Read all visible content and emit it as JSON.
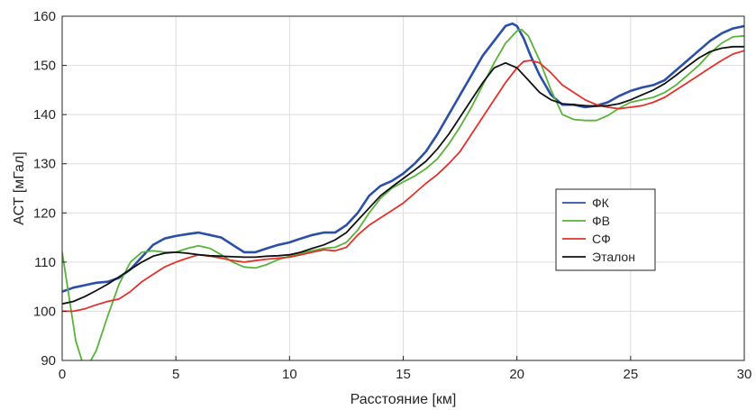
{
  "chart_data": {
    "type": "line",
    "xlabel": "Расстояние [км]",
    "ylabel": "АСТ  [мГал]",
    "xlim": [
      0,
      30
    ],
    "ylim": [
      90,
      160
    ],
    "x_ticks": [
      0,
      5,
      10,
      15,
      20,
      25,
      30
    ],
    "y_ticks": [
      90,
      100,
      110,
      120,
      130,
      140,
      150,
      160
    ],
    "grid": true,
    "legend_position": "right",
    "series": [
      {
        "name": "ФК",
        "color": "#2b4fa6",
        "width": 2.6,
        "x": [
          0,
          0.5,
          1,
          1.5,
          2,
          2.5,
          3,
          3.5,
          4,
          4.5,
          5,
          5.5,
          6,
          6.5,
          7,
          7.5,
          8,
          8.5,
          9,
          9.5,
          10,
          10.5,
          11,
          11.5,
          12,
          12.5,
          13,
          13.5,
          14,
          14.5,
          15,
          15.5,
          16,
          16.5,
          17,
          17.5,
          18,
          18.5,
          19,
          19.5,
          19.8,
          20,
          20.3,
          20.6,
          21,
          21.5,
          22,
          22.5,
          23,
          23.5,
          24,
          24.5,
          25,
          25.5,
          26,
          26.5,
          27,
          27.5,
          28,
          28.5,
          29,
          29.5,
          30
        ],
        "y": [
          104,
          104.8,
          105.3,
          105.8,
          106,
          106.8,
          108.5,
          111,
          113.5,
          114.8,
          115.3,
          115.7,
          116,
          115.5,
          115,
          113.5,
          112,
          112,
          112.8,
          113.5,
          114,
          114.8,
          115.5,
          116,
          116,
          117.5,
          120,
          123.5,
          125.5,
          126.5,
          128,
          130,
          132.5,
          136,
          140,
          144,
          148,
          152,
          155,
          158,
          158.5,
          158,
          155.5,
          152,
          148,
          144,
          142,
          142,
          141.5,
          141.8,
          142.5,
          143.8,
          144.8,
          145.5,
          146,
          147,
          149,
          151,
          153,
          155,
          156.5,
          157.5,
          158
        ]
      },
      {
        "name": "ФВ",
        "color": "#59b33a",
        "width": 1.8,
        "x": [
          0,
          0.3,
          0.6,
          0.9,
          1.2,
          1.5,
          2,
          2.5,
          3,
          3.5,
          4,
          4.5,
          5,
          5.5,
          6,
          6.5,
          7,
          7.5,
          8,
          8.5,
          9,
          9.5,
          10,
          10.5,
          11,
          11.5,
          12,
          12.5,
          13,
          13.5,
          14,
          14.5,
          15,
          15.5,
          16,
          16.5,
          17,
          17.5,
          18,
          18.5,
          19,
          19.5,
          20,
          20.2,
          20.5,
          21,
          21.5,
          22,
          22.5,
          23,
          23.5,
          24,
          24.5,
          25,
          25.5,
          26,
          26.5,
          27,
          27.5,
          28,
          28.5,
          29,
          29.5,
          30
        ],
        "y": [
          112,
          103,
          94,
          89.5,
          89.5,
          92,
          99,
          105.5,
          110,
          112,
          112.3,
          112,
          112,
          112.8,
          113.3,
          112.8,
          111.5,
          110,
          109,
          108.8,
          109.5,
          110.5,
          111.2,
          111.8,
          112.3,
          112.8,
          113,
          114,
          116.5,
          120,
          123,
          125,
          126.3,
          127.5,
          129,
          131,
          134,
          137.5,
          141.5,
          146,
          150.5,
          154.5,
          157,
          157.3,
          156,
          151,
          145,
          140,
          139,
          138.8,
          138.8,
          139.8,
          141.3,
          142.5,
          143,
          143.5,
          144.5,
          146,
          148,
          150,
          152.5,
          154.5,
          155.8,
          156
        ]
      },
      {
        "name": "СФ",
        "color": "#e2312a",
        "width": 1.8,
        "x": [
          0,
          0.5,
          1,
          1.5,
          2,
          2.5,
          3,
          3.5,
          4,
          4.5,
          5,
          5.5,
          6,
          6.5,
          7,
          7.5,
          8,
          8.5,
          9,
          9.5,
          10,
          10.5,
          11,
          11.5,
          12,
          12.5,
          13,
          13.5,
          14,
          14.5,
          15,
          15.5,
          16,
          16.5,
          17,
          17.5,
          18,
          18.5,
          19,
          19.5,
          20,
          20.3,
          20.6,
          21,
          21.5,
          22,
          22.5,
          23,
          23.5,
          24,
          24.5,
          25,
          25.5,
          26,
          26.5,
          27,
          27.5,
          28,
          28.5,
          29,
          29.5,
          30
        ],
        "y": [
          100,
          100,
          100.5,
          101.3,
          102,
          102.5,
          104,
          106,
          107.5,
          109,
          110,
          110.8,
          111.5,
          111.2,
          110.8,
          110.3,
          110,
          110.3,
          110.6,
          110.8,
          111,
          111.5,
          112,
          112.5,
          112.3,
          113,
          115.5,
          117.5,
          119,
          120.5,
          122,
          124,
          126,
          127.8,
          130,
          132.5,
          136,
          139.5,
          143,
          146.5,
          149.5,
          150.8,
          151,
          150.5,
          148.5,
          146,
          144.5,
          143,
          142,
          141.5,
          141.2,
          141.5,
          141.8,
          142.5,
          143.5,
          145,
          146.5,
          148,
          149.5,
          151,
          152.3,
          153
        ]
      },
      {
        "name": "Эталон",
        "color": "#111111",
        "width": 1.8,
        "x": [
          0,
          0.5,
          1,
          1.5,
          2,
          2.5,
          3,
          3.5,
          4,
          4.5,
          5,
          5.5,
          6,
          6.5,
          7,
          7.5,
          8,
          8.5,
          9,
          9.5,
          10,
          10.5,
          11,
          11.5,
          12,
          12.5,
          13,
          13.5,
          14,
          14.5,
          15,
          15.5,
          16,
          16.5,
          17,
          17.5,
          18,
          18.5,
          19,
          19.5,
          20,
          20.5,
          21,
          21.5,
          22,
          22.5,
          23,
          23.5,
          24,
          24.5,
          25,
          25.5,
          26,
          26.5,
          27,
          27.5,
          28,
          28.5,
          29,
          29.5,
          30
        ],
        "y": [
          101.5,
          102,
          103,
          104.2,
          105.5,
          107,
          108.5,
          110,
          111.2,
          111.8,
          112,
          111.8,
          111.5,
          111.3,
          111.2,
          111.1,
          111,
          111,
          111.2,
          111.3,
          111.5,
          112,
          112.8,
          113.5,
          114.5,
          116,
          118.5,
          121,
          123.5,
          125.3,
          127,
          128.7,
          130.5,
          133,
          136,
          139.5,
          143,
          146.5,
          149.5,
          150.5,
          149.5,
          147,
          144.5,
          143,
          142.2,
          142,
          141.8,
          141.7,
          141.8,
          142.2,
          143,
          144,
          145,
          146.3,
          148,
          149.8,
          151.5,
          152.8,
          153.5,
          153.8,
          153.8
        ]
      }
    ]
  }
}
